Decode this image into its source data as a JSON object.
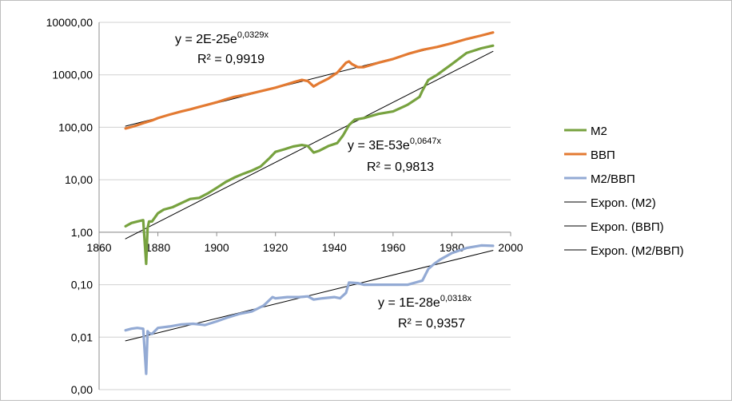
{
  "chart_data": {
    "type": "line",
    "yscale": "log",
    "xlim": [
      1860,
      2000
    ],
    "ylim": [
      0.001,
      10000
    ],
    "x_ticks": [
      1860,
      1880,
      1900,
      1920,
      1940,
      1960,
      1980,
      2000
    ],
    "x_tick_labels": [
      "1860",
      "1880",
      "1900",
      "1920",
      "1940",
      "1960",
      "1980",
      "2000"
    ],
    "y_ticks": [
      10000,
      1000,
      100,
      10,
      1,
      0.1,
      0.01,
      0.001
    ],
    "y_tick_labels": [
      "10000,00",
      "1000,00",
      "100,00",
      "10,00",
      "1,00",
      "0,10",
      "0,01",
      "0,00"
    ],
    "gridlines": "horizontal",
    "legend_position": "right",
    "series": [
      {
        "name": "M2",
        "color": "#77a23f",
        "x": [
          1869,
          1871,
          1873,
          1875,
          1876,
          1876.5,
          1877,
          1878,
          1880,
          1882,
          1885,
          1888,
          1891,
          1894,
          1897,
          1900,
          1903,
          1906,
          1909,
          1912,
          1915,
          1918,
          1920,
          1923,
          1926,
          1929,
          1931,
          1933,
          1935,
          1938,
          1941,
          1943,
          1945,
          1947,
          1950,
          1955,
          1960,
          1965,
          1969,
          1970,
          1972,
          1975,
          1980,
          1985,
          1990,
          1994
        ],
        "values": [
          1.3,
          1.5,
          1.6,
          1.7,
          0.25,
          1.2,
          1.6,
          1.6,
          2.3,
          2.7,
          3.0,
          3.6,
          4.3,
          4.5,
          5.5,
          7.0,
          9.0,
          11.0,
          13.0,
          15.0,
          18.0,
          26.0,
          34.0,
          38.0,
          43.0,
          46.0,
          44.0,
          33.0,
          36.0,
          44.0,
          50.0,
          70.0,
          110.0,
          140.0,
          150.0,
          180.0,
          200.0,
          270.0,
          380.0,
          500.0,
          800.0,
          1000.0,
          1600.0,
          2600.0,
          3200.0,
          3600.0
        ]
      },
      {
        "name": "ВВП",
        "color": "#e37a32",
        "x": [
          1869,
          1872,
          1875,
          1878,
          1880,
          1884,
          1888,
          1891,
          1894,
          1897,
          1900,
          1903,
          1906,
          1910,
          1913,
          1917,
          1920,
          1923,
          1926,
          1929,
          1931,
          1933,
          1935,
          1938,
          1941,
          1944,
          1945,
          1946,
          1948,
          1950,
          1955,
          1960,
          1965,
          1970,
          1975,
          1980,
          1985,
          1990,
          1994
        ],
        "values": [
          95,
          105,
          120,
          135,
          150,
          175,
          200,
          220,
          245,
          270,
          300,
          340,
          380,
          420,
          460,
          520,
          570,
          640,
          720,
          800,
          760,
          600,
          700,
          850,
          1100,
          1700,
          1800,
          1600,
          1400,
          1400,
          1700,
          2000,
          2500,
          3000,
          3400,
          4000,
          4800,
          5600,
          6400
        ]
      },
      {
        "name": "М2/ВВП",
        "color": "#93aad4",
        "x": [
          1869,
          1871,
          1873,
          1875,
          1876,
          1876.5,
          1877,
          1878,
          1880,
          1884,
          1888,
          1892,
          1896,
          1900,
          1904,
          1908,
          1912,
          1916,
          1919,
          1920,
          1924,
          1928,
          1931,
          1933,
          1936,
          1940,
          1942,
          1944,
          1945,
          1948,
          1950,
          1955,
          1960,
          1965,
          1970,
          1972,
          1974,
          1976,
          1980,
          1985,
          1990,
          1994
        ],
        "values": [
          0.0135,
          0.0145,
          0.015,
          0.0145,
          0.002,
          0.013,
          0.012,
          0.0115,
          0.015,
          0.016,
          0.0175,
          0.018,
          0.017,
          0.02,
          0.024,
          0.028,
          0.031,
          0.04,
          0.058,
          0.055,
          0.058,
          0.058,
          0.06,
          0.052,
          0.055,
          0.058,
          0.055,
          0.07,
          0.11,
          0.107,
          0.1,
          0.1,
          0.1,
          0.1,
          0.12,
          0.2,
          0.25,
          0.3,
          0.4,
          0.5,
          0.56,
          0.55
        ]
      },
      {
        "name": "Expon. (M2)",
        "color": "#000000",
        "trendline": true,
        "x": [
          1869,
          1994
        ],
        "values": [
          0.75,
          2800
        ]
      },
      {
        "name": "Expon. (ВВП)",
        "color": "#000000",
        "trendline": true,
        "x": [
          1869,
          1994
        ],
        "values": [
          105,
          6300
        ]
      },
      {
        "name": "Expon. (M2/ВВП)",
        "color": "#000000",
        "trendline": true,
        "x": [
          1869,
          1994
        ],
        "values": [
          0.0085,
          0.45
        ]
      }
    ],
    "annotations": [
      {
        "line1": "y = 2E-25e",
        "exp": "0,0329x",
        "line2": "R² = 0,9919"
      },
      {
        "line1": "y = 3E-53e",
        "exp": "0,0647x",
        "line2": "R² = 0,9813"
      },
      {
        "line1": "y = 1E-28e",
        "exp": "0,0318x",
        "line2": "R² = 0,9357"
      }
    ]
  }
}
